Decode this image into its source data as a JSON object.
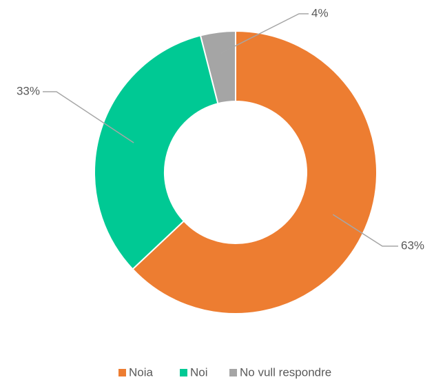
{
  "chart_data": {
    "type": "donut",
    "categories": [
      "Noia",
      "Noi",
      "No vull respondre"
    ],
    "values": [
      63,
      33,
      4
    ],
    "value_labels": [
      "63%",
      "33%",
      "4%"
    ],
    "colors": [
      "#ed7d31",
      "#00c994",
      "#a5a5a5"
    ],
    "legend": "bottom"
  }
}
